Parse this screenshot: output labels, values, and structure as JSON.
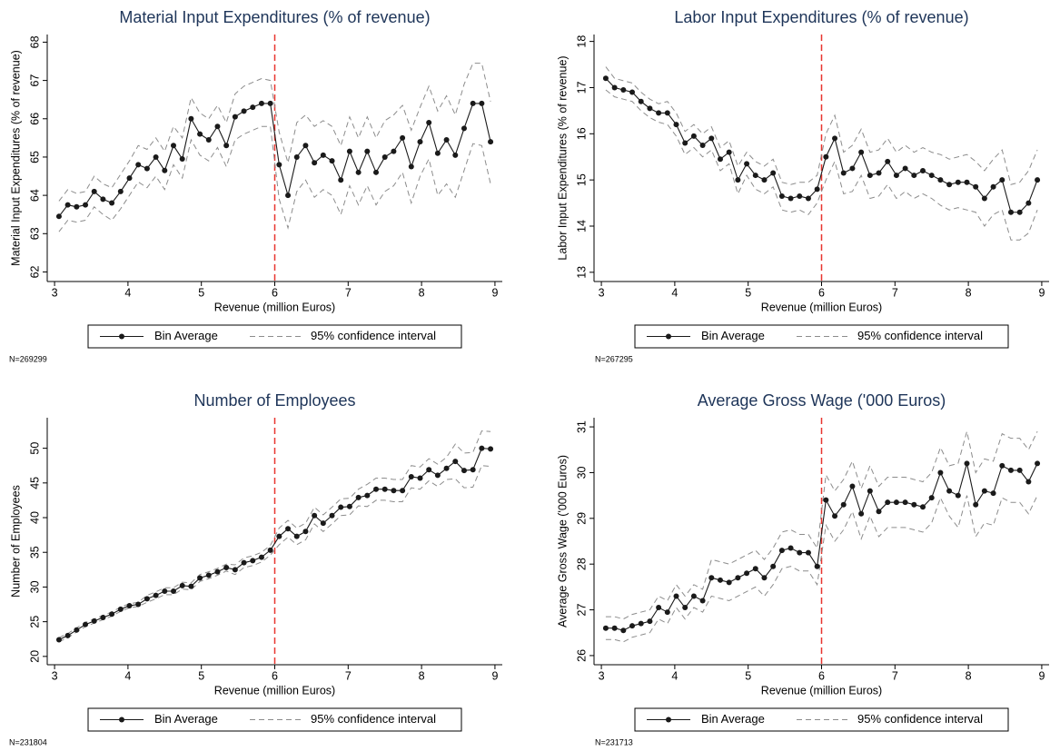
{
  "chart_data": [
    {
      "type": "line",
      "title": "Material Input Expenditures (% of revenue)",
      "xlabel": "Revenue (million Euros)",
      "ylabel": "Material Input Expenditures (% of revenue)",
      "note": "N=269299",
      "xlim": [
        2.9,
        9.1
      ],
      "xticks": [
        3,
        4,
        5,
        6,
        7,
        8,
        9
      ],
      "ylim": [
        61.75,
        68.2
      ],
      "yticks": [
        62,
        63,
        64,
        65,
        66,
        67,
        68
      ],
      "vline": 6,
      "vline_color": "#e8352f",
      "x": [
        3.06,
        3.18,
        3.3,
        3.42,
        3.54,
        3.66,
        3.78,
        3.9,
        4.02,
        4.14,
        4.26,
        4.38,
        4.5,
        4.62,
        4.74,
        4.86,
        4.98,
        5.1,
        5.22,
        5.34,
        5.46,
        5.58,
        5.7,
        5.82,
        5.94,
        6.06,
        6.18,
        6.3,
        6.42,
        6.54,
        6.66,
        6.78,
        6.9,
        7.02,
        7.14,
        7.26,
        7.38,
        7.5,
        7.62,
        7.74,
        7.86,
        7.98,
        8.1,
        8.22,
        8.34,
        8.46,
        8.58,
        8.7,
        8.82,
        8.94
      ],
      "series": [
        {
          "name": "Bin Average",
          "color": "#1a1a1a",
          "values": [
            63.45,
            63.75,
            63.7,
            63.75,
            64.1,
            63.9,
            63.8,
            64.1,
            64.45,
            64.8,
            64.7,
            65.0,
            64.65,
            65.3,
            64.95,
            66.0,
            65.6,
            65.45,
            65.8,
            65.3,
            66.05,
            66.2,
            66.3,
            66.4,
            66.4,
            64.8,
            64.0,
            65.0,
            65.3,
            64.85,
            65.05,
            64.9,
            64.4,
            65.15,
            64.6,
            65.15,
            64.6,
            65.0,
            65.15,
            65.5,
            64.75,
            65.4,
            65.9,
            65.1,
            65.45,
            65.05,
            65.75,
            66.4,
            66.4,
            65.4
          ]
        },
        {
          "name": "95% confidence interval",
          "color": "#8c8c8c",
          "upper": [
            63.85,
            64.15,
            64.05,
            64.1,
            64.5,
            64.3,
            64.2,
            64.55,
            64.9,
            65.3,
            65.2,
            65.5,
            65.15,
            65.8,
            65.5,
            66.55,
            66.15,
            66.0,
            66.35,
            65.9,
            66.65,
            66.85,
            66.95,
            67.05,
            67.0,
            65.65,
            64.85,
            65.9,
            66.1,
            65.8,
            65.95,
            65.8,
            65.3,
            66.05,
            65.5,
            66.05,
            65.5,
            65.95,
            66.1,
            66.35,
            65.7,
            66.3,
            66.85,
            66.2,
            66.6,
            66.1,
            66.9,
            67.45,
            67.45,
            66.45
          ],
          "lower": [
            63.05,
            63.35,
            63.3,
            63.35,
            63.7,
            63.5,
            63.35,
            63.65,
            64.0,
            64.35,
            64.2,
            64.5,
            64.15,
            64.8,
            64.45,
            65.45,
            65.05,
            64.9,
            65.25,
            64.75,
            65.45,
            65.6,
            65.7,
            65.8,
            65.8,
            63.9,
            63.15,
            64.1,
            64.4,
            63.95,
            64.15,
            64.0,
            63.5,
            64.25,
            63.75,
            64.25,
            63.75,
            64.1,
            64.25,
            64.6,
            63.8,
            64.5,
            64.95,
            64.0,
            64.3,
            63.95,
            64.65,
            65.35,
            65.3,
            64.3
          ]
        }
      ]
    },
    {
      "type": "line",
      "title": "Labor Input Expenditures (% of revenue)",
      "xlabel": "Revenue (million Euros)",
      "ylabel": "Labor Input Expenditures (% of revenue)",
      "note": "N=267295",
      "xlim": [
        2.9,
        9.1
      ],
      "xticks": [
        3,
        4,
        5,
        6,
        7,
        8,
        9
      ],
      "ylim": [
        12.8,
        18.15
      ],
      "yticks": [
        13,
        14,
        15,
        16,
        17,
        18
      ],
      "vline": 6,
      "vline_color": "#e8352f",
      "x": [
        3.06,
        3.18,
        3.3,
        3.42,
        3.54,
        3.66,
        3.78,
        3.9,
        4.02,
        4.14,
        4.26,
        4.38,
        4.5,
        4.62,
        4.74,
        4.86,
        4.98,
        5.1,
        5.22,
        5.34,
        5.46,
        5.58,
        5.7,
        5.82,
        5.94,
        6.06,
        6.18,
        6.3,
        6.42,
        6.54,
        6.66,
        6.78,
        6.9,
        7.02,
        7.14,
        7.26,
        7.38,
        7.5,
        7.62,
        7.74,
        7.86,
        7.98,
        8.1,
        8.22,
        8.34,
        8.46,
        8.58,
        8.7,
        8.82,
        8.94
      ],
      "series": [
        {
          "name": "Bin Average",
          "color": "#1a1a1a",
          "values": [
            17.2,
            17.0,
            16.95,
            16.9,
            16.7,
            16.55,
            16.45,
            16.45,
            16.2,
            15.8,
            15.95,
            15.75,
            15.9,
            15.45,
            15.6,
            15.0,
            15.35,
            15.1,
            15.0,
            15.15,
            14.65,
            14.6,
            14.65,
            14.6,
            14.8,
            15.5,
            15.9,
            15.15,
            15.25,
            15.6,
            15.1,
            15.15,
            15.4,
            15.1,
            15.25,
            15.1,
            15.2,
            15.1,
            15.0,
            14.9,
            14.95,
            14.95,
            14.85,
            14.6,
            14.85,
            15.0,
            14.3,
            14.3,
            14.5,
            15.0
          ]
        },
        {
          "name": "95% confidence interval",
          "color": "#8c8c8c",
          "upper": [
            17.45,
            17.2,
            17.15,
            17.1,
            16.9,
            16.75,
            16.65,
            16.7,
            16.45,
            16.05,
            16.2,
            16.0,
            16.15,
            15.7,
            15.85,
            15.3,
            15.6,
            15.4,
            15.3,
            15.45,
            14.95,
            14.9,
            14.95,
            14.95,
            15.1,
            16.0,
            16.4,
            15.6,
            15.75,
            16.1,
            15.6,
            15.65,
            15.9,
            15.6,
            15.75,
            15.6,
            15.7,
            15.6,
            15.55,
            15.45,
            15.5,
            15.55,
            15.4,
            15.2,
            15.45,
            15.65,
            14.9,
            14.95,
            15.2,
            15.65
          ],
          "lower": [
            16.95,
            16.8,
            16.75,
            16.7,
            16.5,
            16.35,
            16.25,
            16.2,
            15.95,
            15.55,
            15.7,
            15.5,
            15.65,
            15.2,
            15.35,
            14.7,
            15.1,
            14.8,
            14.7,
            14.85,
            14.35,
            14.3,
            14.35,
            14.25,
            14.5,
            15.0,
            15.4,
            14.7,
            14.75,
            15.1,
            14.6,
            14.65,
            14.9,
            14.6,
            14.75,
            14.6,
            14.7,
            14.6,
            14.45,
            14.35,
            14.4,
            14.35,
            14.3,
            14.0,
            14.25,
            14.35,
            13.7,
            13.7,
            13.85,
            14.35
          ]
        }
      ]
    },
    {
      "type": "line",
      "title": "Number of Employees",
      "xlabel": "Revenue (million Euros)",
      "ylabel": "Number of Employees",
      "note": "N=231804",
      "xlim": [
        2.9,
        9.1
      ],
      "xticks": [
        3,
        4,
        5,
        6,
        7,
        8,
        9
      ],
      "ylim": [
        18.8,
        54.4
      ],
      "yticks": [
        20,
        25,
        30,
        35,
        40,
        45,
        50
      ],
      "vline": 6,
      "vline_color": "#e8352f",
      "x": [
        3.06,
        3.18,
        3.3,
        3.42,
        3.54,
        3.66,
        3.78,
        3.9,
        4.02,
        4.14,
        4.26,
        4.38,
        4.5,
        4.62,
        4.74,
        4.86,
        4.98,
        5.1,
        5.22,
        5.34,
        5.46,
        5.58,
        5.7,
        5.82,
        5.94,
        6.06,
        6.18,
        6.3,
        6.42,
        6.54,
        6.66,
        6.78,
        6.9,
        7.02,
        7.14,
        7.26,
        7.38,
        7.5,
        7.62,
        7.74,
        7.86,
        7.98,
        8.1,
        8.22,
        8.34,
        8.46,
        8.58,
        8.7,
        8.82,
        8.94
      ],
      "series": [
        {
          "name": "Bin Average",
          "color": "#1a1a1a",
          "values": [
            22.4,
            23.0,
            23.8,
            24.6,
            25.1,
            25.6,
            26.1,
            26.8,
            27.3,
            27.5,
            28.3,
            28.8,
            29.4,
            29.4,
            30.2,
            30.1,
            31.3,
            31.7,
            32.2,
            32.8,
            32.5,
            33.5,
            33.8,
            34.3,
            35.3,
            37.3,
            38.4,
            37.3,
            38.0,
            40.3,
            39.2,
            40.3,
            41.5,
            41.6,
            42.9,
            43.2,
            44.1,
            44.1,
            43.9,
            43.9,
            45.9,
            45.7,
            46.9,
            46.1,
            47.1,
            48.1,
            46.8,
            46.9,
            50.0,
            49.9
          ]
        },
        {
          "name": "95% confidence interval",
          "color": "#8c8c8c",
          "upper": [
            22.7,
            23.3,
            24.1,
            24.9,
            25.4,
            25.9,
            26.4,
            27.1,
            27.6,
            27.8,
            28.8,
            29.3,
            29.9,
            29.9,
            30.7,
            30.6,
            31.8,
            32.2,
            32.7,
            33.3,
            33.2,
            34.2,
            34.5,
            35.0,
            36.0,
            38.5,
            39.6,
            38.5,
            39.2,
            41.5,
            40.4,
            41.5,
            42.7,
            42.8,
            44.1,
            44.8,
            45.7,
            45.7,
            45.5,
            45.5,
            47.5,
            47.3,
            48.5,
            47.7,
            48.7,
            50.6,
            49.3,
            49.4,
            52.5,
            52.4
          ],
          "lower": [
            22.1,
            22.7,
            23.5,
            24.3,
            24.8,
            25.3,
            25.8,
            26.5,
            27.0,
            27.2,
            27.8,
            28.3,
            28.9,
            28.9,
            29.7,
            29.6,
            30.8,
            31.2,
            31.7,
            32.3,
            31.8,
            32.8,
            33.1,
            33.6,
            34.6,
            36.1,
            37.2,
            36.1,
            36.8,
            39.1,
            38.0,
            39.1,
            40.3,
            40.4,
            41.7,
            41.6,
            42.5,
            42.5,
            42.3,
            42.3,
            44.3,
            44.1,
            45.3,
            44.5,
            45.5,
            45.6,
            44.3,
            44.4,
            47.5,
            47.4
          ]
        }
      ]
    },
    {
      "type": "line",
      "title": "Average Gross Wage ('000 Euros)",
      "xlabel": "Revenue (million Euros)",
      "ylabel": "Average Gross Wage ('000 Euros)",
      "note": "N=231713",
      "xlim": [
        2.9,
        9.1
      ],
      "xticks": [
        3,
        4,
        5,
        6,
        7,
        8,
        9
      ],
      "ylim": [
        25.8,
        31.2
      ],
      "yticks": [
        26,
        27,
        28,
        29,
        30,
        31
      ],
      "vline": 6,
      "vline_color": "#e8352f",
      "x": [
        3.06,
        3.18,
        3.3,
        3.42,
        3.54,
        3.66,
        3.78,
        3.9,
        4.02,
        4.14,
        4.26,
        4.38,
        4.5,
        4.62,
        4.74,
        4.86,
        4.98,
        5.1,
        5.22,
        5.34,
        5.46,
        5.58,
        5.7,
        5.82,
        5.94,
        6.06,
        6.18,
        6.3,
        6.42,
        6.54,
        6.66,
        6.78,
        6.9,
        7.02,
        7.14,
        7.26,
        7.38,
        7.5,
        7.62,
        7.74,
        7.86,
        7.98,
        8.1,
        8.22,
        8.34,
        8.46,
        8.58,
        8.7,
        8.82,
        8.94
      ],
      "series": [
        {
          "name": "Bin Average",
          "color": "#1a1a1a",
          "values": [
            26.6,
            26.6,
            26.55,
            26.65,
            26.7,
            26.75,
            27.05,
            26.95,
            27.3,
            27.05,
            27.3,
            27.2,
            27.7,
            27.65,
            27.6,
            27.7,
            27.8,
            27.9,
            27.7,
            27.95,
            28.3,
            28.35,
            28.25,
            28.25,
            27.95,
            29.4,
            29.05,
            29.3,
            29.7,
            29.1,
            29.6,
            29.15,
            29.35,
            29.35,
            29.35,
            29.3,
            29.25,
            29.45,
            30.0,
            29.6,
            29.5,
            30.2,
            29.3,
            29.6,
            29.55,
            30.15,
            30.05,
            30.05,
            29.8,
            30.2
          ]
        },
        {
          "name": "95% confidence interval",
          "color": "#8c8c8c",
          "upper": [
            26.85,
            26.85,
            26.8,
            26.9,
            26.95,
            27.0,
            27.3,
            27.2,
            27.55,
            27.3,
            27.55,
            27.45,
            28.1,
            28.05,
            28.0,
            28.1,
            28.2,
            28.3,
            28.1,
            28.35,
            28.7,
            28.75,
            28.65,
            28.65,
            28.35,
            29.95,
            29.6,
            29.85,
            30.25,
            29.65,
            30.15,
            29.7,
            29.9,
            29.9,
            29.9,
            29.85,
            29.8,
            30.0,
            30.55,
            30.15,
            30.2,
            30.9,
            30.0,
            30.3,
            30.25,
            30.85,
            30.75,
            30.75,
            30.5,
            30.9
          ],
          "lower": [
            26.35,
            26.35,
            26.3,
            26.4,
            26.45,
            26.5,
            26.8,
            26.7,
            27.05,
            26.8,
            27.05,
            26.95,
            27.3,
            27.25,
            27.2,
            27.3,
            27.4,
            27.5,
            27.3,
            27.55,
            27.9,
            27.95,
            27.85,
            27.85,
            27.55,
            28.85,
            28.5,
            28.75,
            29.15,
            28.55,
            29.05,
            28.6,
            28.8,
            28.8,
            28.8,
            28.75,
            28.7,
            28.9,
            29.45,
            29.05,
            28.8,
            29.5,
            28.6,
            28.9,
            28.85,
            29.45,
            29.35,
            29.35,
            29.1,
            29.5
          ]
        }
      ]
    }
  ]
}
